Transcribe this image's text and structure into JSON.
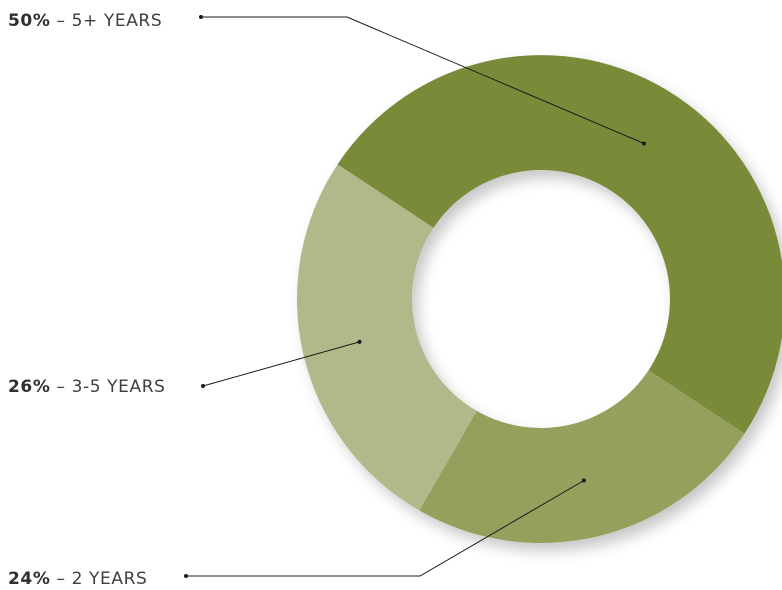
{
  "chart_data": {
    "type": "pie",
    "variant": "donut",
    "title": "",
    "categories": [
      "5+ YEARS",
      "2 YEARS",
      "3-5 YEARS"
    ],
    "values": [
      50,
      24,
      26
    ],
    "percent_labels": [
      "50%",
      "24%",
      "26%"
    ],
    "separator": " – ",
    "colors": [
      "#798a38",
      "#95a05d",
      "#b1b889"
    ],
    "legend": "none"
  }
}
